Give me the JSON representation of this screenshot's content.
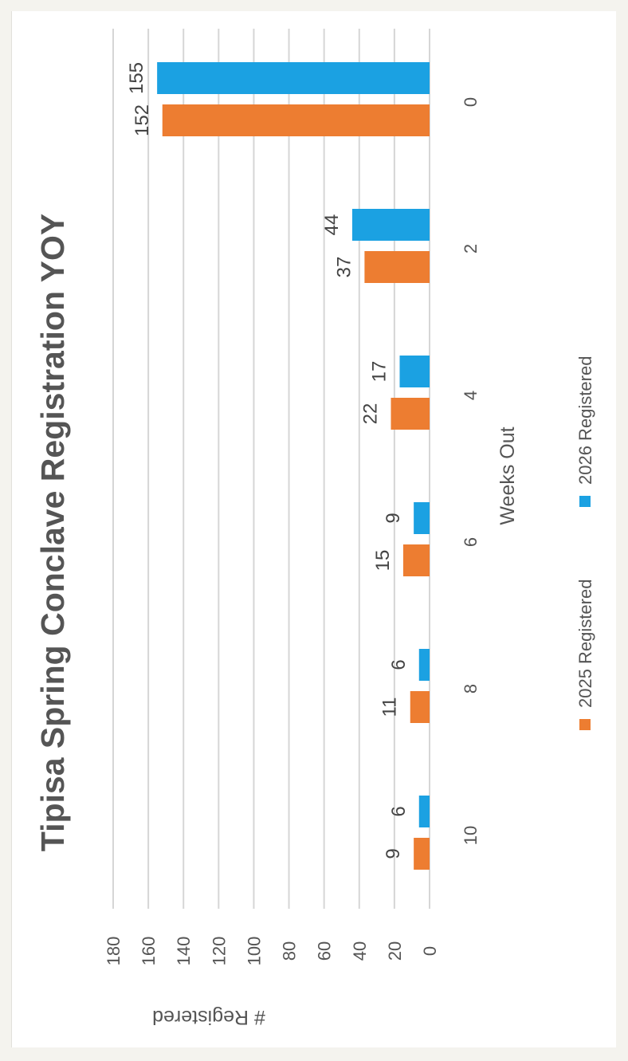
{
  "chart_data": {
    "type": "bar",
    "orientation": "vertical (image rotated 90° clockwise)",
    "title": "Tipisa Spring Conclave Registration YOY",
    "xlabel": "Weeks Out",
    "ylabel": "# Registered",
    "categories": [
      "10",
      "8",
      "6",
      "4",
      "2",
      "0"
    ],
    "series": [
      {
        "name": "2025 Registered",
        "color": "#ed7d31",
        "values": [
          9,
          11,
          15,
          22,
          37,
          152
        ]
      },
      {
        "name": "2026 Registered",
        "color": "#1ba1e2",
        "values": [
          6,
          6,
          9,
          17,
          44,
          155
        ]
      }
    ],
    "ylim": [
      0,
      180
    ],
    "yticks": [
      "0",
      "20",
      "40",
      "60",
      "80",
      "100",
      "120",
      "140",
      "160",
      "180"
    ],
    "grid": true,
    "legend": "bottom",
    "data_labels": true
  }
}
